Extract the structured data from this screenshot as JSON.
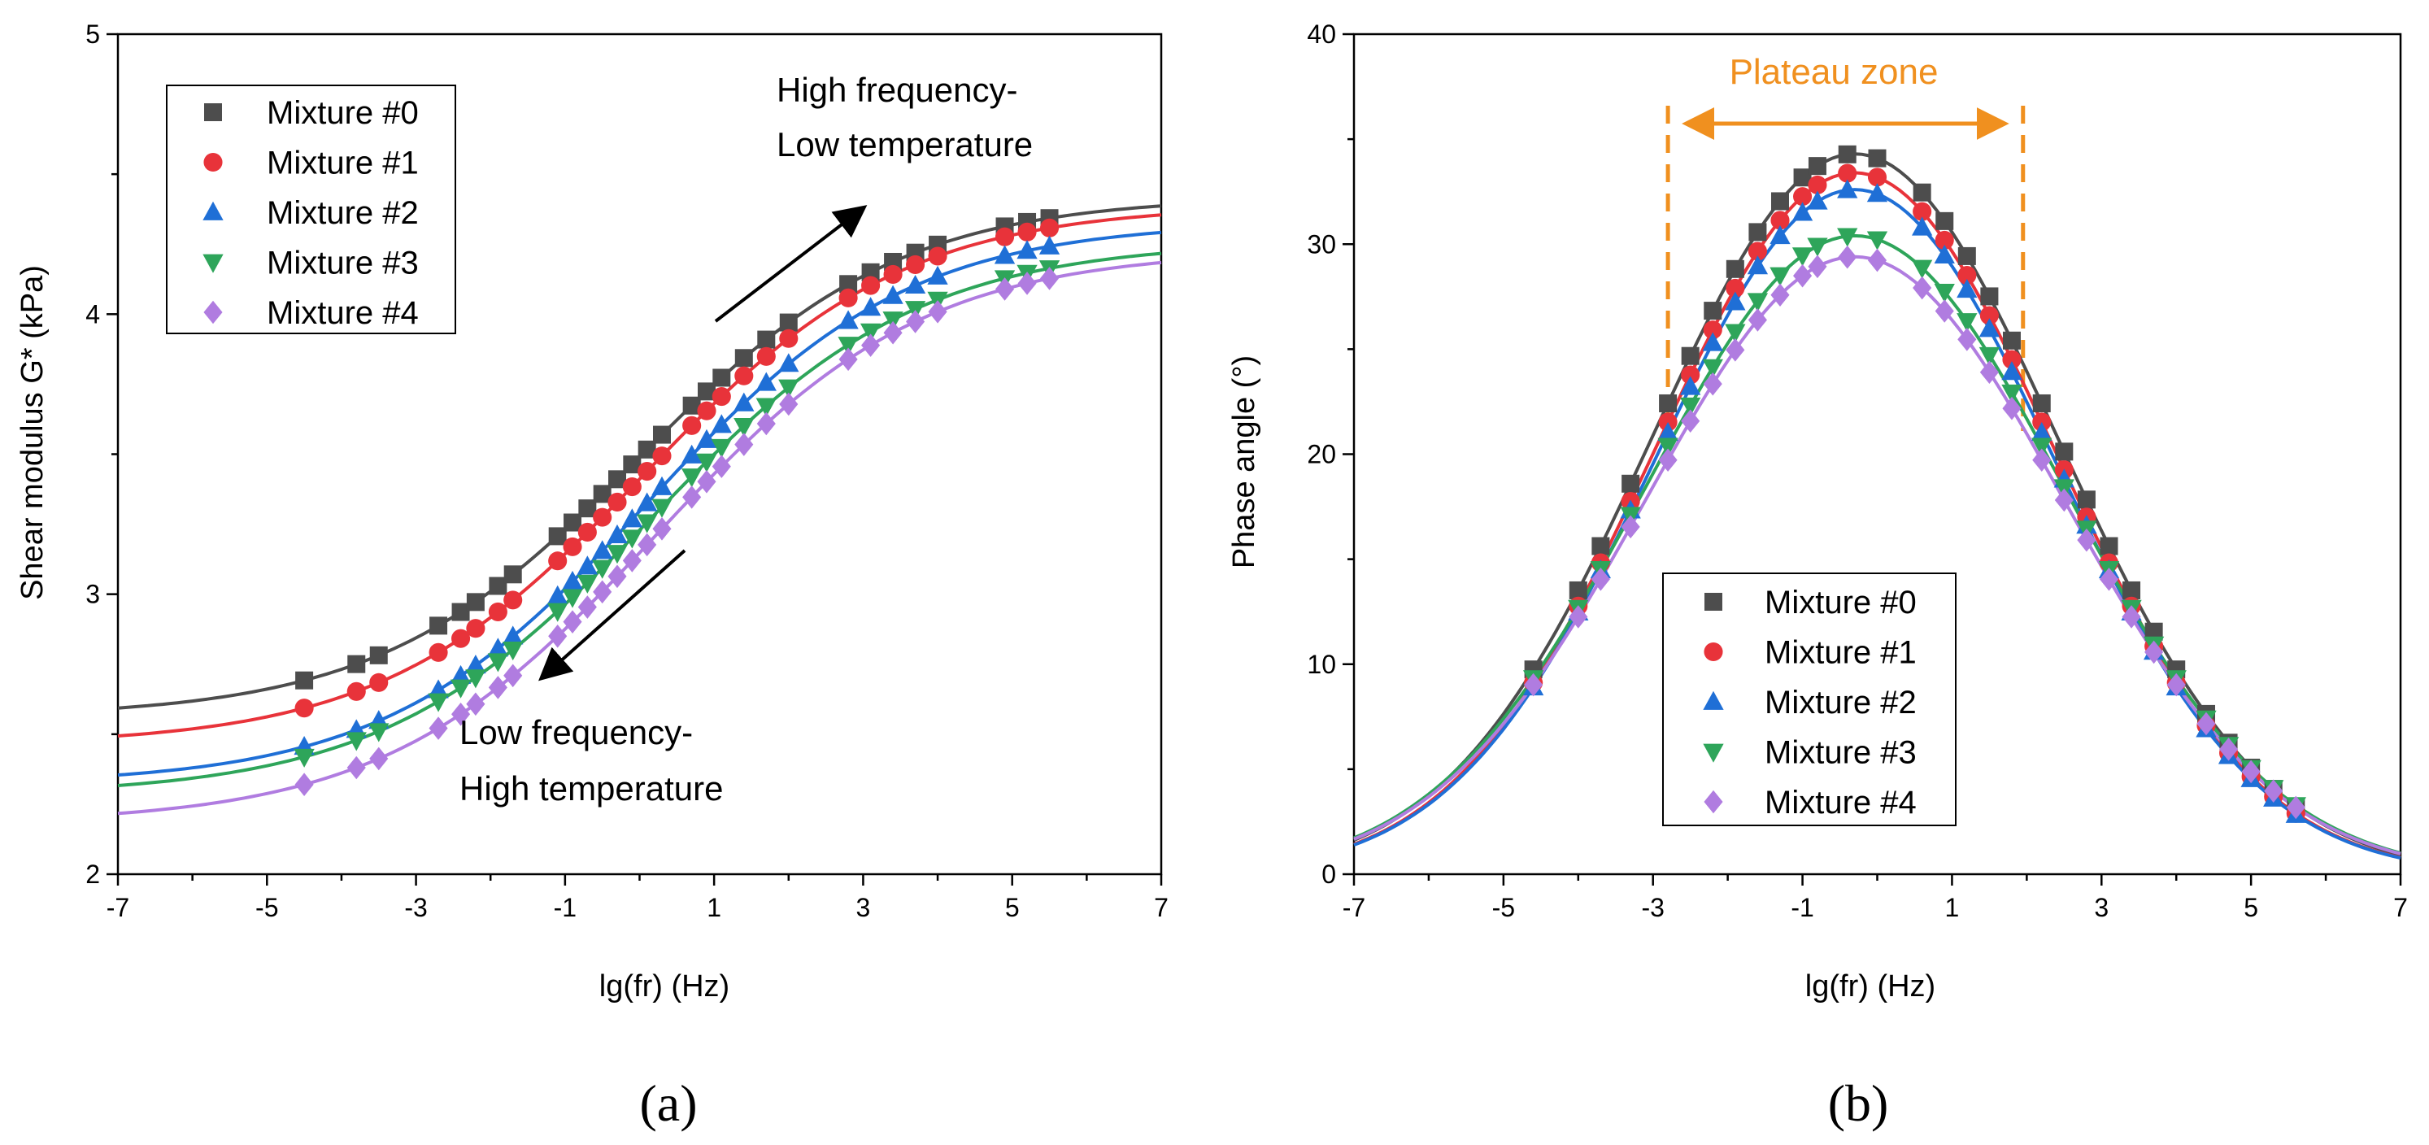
{
  "figure": {
    "panel_labels": [
      "(a)",
      "(b)"
    ]
  },
  "chart_data": [
    {
      "type": "scatter",
      "panel": "(a)",
      "xlabel": "lg(fr) (Hz)",
      "ylabel": "Shear modulus G* (kPa)",
      "xlim": [
        -7,
        7
      ],
      "ylim": [
        2,
        5
      ],
      "xticks": [
        -7,
        -5,
        -3,
        -1,
        1,
        3,
        5,
        7
      ],
      "yticks": [
        2,
        3,
        4,
        5
      ],
      "legend_position": "top-left",
      "annotations": [
        {
          "lines": [
            "High frequency-",
            "Low temperature"
          ],
          "arrow": "up-right"
        },
        {
          "lines": [
            "Low frequency-",
            "High temperature"
          ],
          "arrow": "down-left"
        }
      ],
      "x": [
        -4.5,
        -3.8,
        -3.5,
        -2.7,
        -2.4,
        -2.2,
        -1.9,
        -1.7,
        -1.1,
        -0.9,
        -0.7,
        -0.5,
        -0.3,
        -0.1,
        0.1,
        0.3,
        0.7,
        0.9,
        1.1,
        1.4,
        1.7,
        2.0,
        2.8,
        3.1,
        3.4,
        3.7,
        4.0,
        4.9,
        5.2,
        5.5
      ],
      "series": [
        {
          "name": "Mixture #0",
          "color": "#4d4d4d",
          "marker": "square",
          "base": 2.56,
          "amp": 1.86,
          "center": 0.0,
          "width": 1.75
        },
        {
          "name": "Mixture #1",
          "color": "#e8333a",
          "marker": "circle",
          "base": 2.46,
          "amp": 1.93,
          "center": 0.05,
          "width": 1.75
        },
        {
          "name": "Mixture #2",
          "color": "#1f6fd6",
          "marker": "triangle-up",
          "base": 2.32,
          "amp": 2.01,
          "center": 0.1,
          "width": 1.75
        },
        {
          "name": "Mixture #3",
          "color": "#2ea55a",
          "marker": "triangle-down",
          "base": 2.28,
          "amp": 1.98,
          "center": 0.15,
          "width": 1.8
        },
        {
          "name": "Mixture #4",
          "color": "#b07ce0",
          "marker": "diamond",
          "base": 2.18,
          "amp": 2.05,
          "center": 0.2,
          "width": 1.8
        }
      ]
    },
    {
      "type": "scatter",
      "panel": "(b)",
      "xlabel": "lg(fr) (Hz)",
      "ylabel": "Phase angle (°)",
      "xlim": [
        -7,
        7
      ],
      "ylim": [
        0,
        40
      ],
      "xticks": [
        -7,
        -5,
        -3,
        -1,
        1,
        3,
        5,
        7
      ],
      "yticks": [
        0,
        10,
        20,
        30,
        40
      ],
      "legend_position": "bottom-center",
      "annotation": {
        "text": "Plateau zone",
        "color": "#f0901f",
        "x_range": [
          -2.8,
          1.95
        ]
      },
      "x": [
        -4.6,
        -4.0,
        -3.7,
        -3.3,
        -2.8,
        -2.5,
        -2.2,
        -1.9,
        -1.6,
        -1.3,
        -1.0,
        -0.8,
        -0.4,
        0.0,
        0.6,
        0.9,
        1.2,
        1.5,
        1.8,
        2.2,
        2.5,
        2.8,
        3.1,
        3.4,
        3.7,
        4.0,
        4.4,
        4.7,
        5.0,
        5.3,
        5.6
      ],
      "series": [
        {
          "name": "Mixture #0",
          "color": "#4d4d4d",
          "marker": "square",
          "peak": 34.3,
          "center": -0.3,
          "width": 3.15
        },
        {
          "name": "Mixture #1",
          "color": "#e8333a",
          "marker": "circle",
          "peak": 33.4,
          "center": -0.3,
          "width": 3.1
        },
        {
          "name": "Mixture #2",
          "color": "#1f6fd6",
          "marker": "triangle-up",
          "peak": 32.6,
          "center": -0.3,
          "width": 3.1
        },
        {
          "name": "Mixture #3",
          "color": "#2ea55a",
          "marker": "triangle-down",
          "peak": 30.4,
          "center": -0.3,
          "width": 3.25
        },
        {
          "name": "Mixture #4",
          "color": "#b07ce0",
          "marker": "diamond",
          "peak": 29.4,
          "center": -0.3,
          "width": 3.25
        }
      ]
    }
  ]
}
